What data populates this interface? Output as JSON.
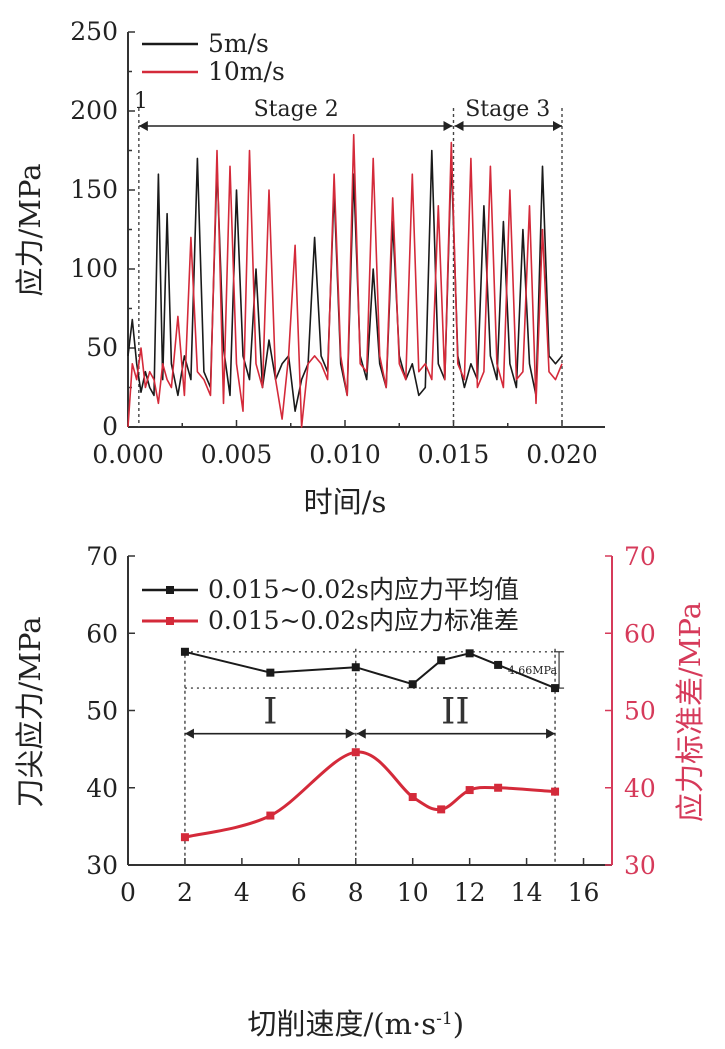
{
  "chart_data": [
    {
      "type": "line",
      "title": "",
      "xlabel": "时间/s",
      "ylabel": "应力/MPa",
      "xlim": [
        0.0,
        0.02
      ],
      "ylim": [
        0,
        250
      ],
      "xticks": [
        "0.000",
        "0.005",
        "0.010",
        "0.015",
        "0.020"
      ],
      "yticks": [
        "0",
        "50",
        "100",
        "150",
        "200",
        "250"
      ],
      "legend_position": "top-left",
      "stage_labels": [
        "1",
        "Stage 2",
        "Stage 3"
      ],
      "stage_boundaries": [
        0.0005,
        0.015,
        0.02
      ],
      "series": [
        {
          "name": "5m/s",
          "color": "#1a1a1a",
          "x": [
            0.0,
            0.0002,
            0.0004,
            0.0006,
            0.0008,
            0.001,
            0.0012,
            0.0014,
            0.0016,
            0.0018,
            0.002,
            0.0023,
            0.0026,
            0.0029,
            0.0032,
            0.0035,
            0.0038,
            0.0041,
            0.0044,
            0.0047,
            0.005,
            0.0053,
            0.0056,
            0.0059,
            0.0062,
            0.0065,
            0.0068,
            0.0071,
            0.0074,
            0.0077,
            0.008,
            0.0083,
            0.0086,
            0.0089,
            0.0092,
            0.0095,
            0.0098,
            0.0101,
            0.0104,
            0.0107,
            0.011,
            0.0113,
            0.0116,
            0.0119,
            0.0122,
            0.0125,
            0.0128,
            0.0131,
            0.0134,
            0.0137,
            0.014,
            0.0143,
            0.0146,
            0.0149,
            0.0152,
            0.0155,
            0.0158,
            0.0161,
            0.0164,
            0.0167,
            0.017,
            0.0173,
            0.0176,
            0.0179,
            0.0182,
            0.0185,
            0.0188,
            0.0191,
            0.0194,
            0.0197,
            0.02
          ],
          "values": [
            45,
            68,
            40,
            22,
            35,
            25,
            20,
            160,
            30,
            135,
            40,
            20,
            45,
            30,
            170,
            35,
            25,
            165,
            50,
            20,
            150,
            45,
            30,
            100,
            25,
            55,
            30,
            40,
            45,
            10,
            30,
            40,
            120,
            45,
            35,
            150,
            40,
            20,
            160,
            45,
            30,
            100,
            40,
            25,
            130,
            45,
            30,
            40,
            20,
            25,
            175,
            40,
            30,
            170,
            45,
            25,
            40,
            30,
            140,
            45,
            30,
            130,
            40,
            25,
            125,
            40,
            20,
            165,
            45,
            40,
            45
          ]
        },
        {
          "name": "10m/s",
          "color": "#d42a3a",
          "x": [
            0.0,
            0.0002,
            0.0004,
            0.0006,
            0.0008,
            0.001,
            0.0012,
            0.0014,
            0.0016,
            0.0018,
            0.002,
            0.0023,
            0.0026,
            0.0029,
            0.0032,
            0.0035,
            0.0038,
            0.0041,
            0.0044,
            0.0047,
            0.005,
            0.0053,
            0.0056,
            0.0059,
            0.0062,
            0.0065,
            0.0068,
            0.0071,
            0.0074,
            0.0077,
            0.008,
            0.0083,
            0.0086,
            0.0089,
            0.0092,
            0.0095,
            0.0098,
            0.0101,
            0.0104,
            0.0107,
            0.011,
            0.0113,
            0.0116,
            0.0119,
            0.0122,
            0.0125,
            0.0128,
            0.0131,
            0.0134,
            0.0137,
            0.014,
            0.0143,
            0.0146,
            0.0149,
            0.0152,
            0.0155,
            0.0158,
            0.0161,
            0.0164,
            0.0167,
            0.017,
            0.0173,
            0.0176,
            0.0179,
            0.0182,
            0.0185,
            0.0188,
            0.0191,
            0.0194,
            0.0197,
            0.02
          ],
          "values": [
            0,
            40,
            30,
            50,
            25,
            35,
            30,
            15,
            40,
            30,
            25,
            70,
            20,
            120,
            35,
            30,
            20,
            175,
            15,
            165,
            40,
            10,
            175,
            40,
            25,
            150,
            30,
            5,
            45,
            115,
            0,
            40,
            45,
            40,
            30,
            160,
            45,
            20,
            185,
            40,
            35,
            170,
            45,
            25,
            145,
            40,
            30,
            160,
            35,
            40,
            30,
            140,
            30,
            180,
            40,
            30,
            170,
            25,
            35,
            165,
            40,
            25,
            150,
            30,
            35,
            140,
            15,
            125,
            35,
            30,
            40
          ]
        }
      ]
    },
    {
      "type": "line",
      "title": "",
      "xlabel": "切削速度/(m·s",
      "xlabel_sup": "-1",
      "xlabel_close": ")",
      "ylabel": "刀尖应力/MPa",
      "ylabel_right": "应力标准差/MPa",
      "xlim": [
        0,
        17
      ],
      "ylim": [
        30,
        70
      ],
      "ylim_right": [
        30,
        70
      ],
      "xticks": [
        "0",
        "2",
        "4",
        "6",
        "8",
        "10",
        "12",
        "14",
        "16"
      ],
      "yticks": [
        "30",
        "40",
        "50",
        "60",
        "70"
      ],
      "yticks_right": [
        "30",
        "40",
        "50",
        "60",
        "70"
      ],
      "legend_position": "top-left",
      "regions": [
        "I",
        "II"
      ],
      "region_boundaries": [
        2,
        8,
        15
      ],
      "range_annotation": "4.66MPa",
      "series": [
        {
          "name": "0.015~0.02s内应力平均值",
          "color": "#1a1a1a",
          "x": [
            2,
            5,
            8,
            10,
            11,
            12,
            13,
            15
          ],
          "values": [
            57.6,
            54.9,
            55.6,
            53.4,
            56.5,
            57.4,
            55.9,
            52.9
          ]
        },
        {
          "name": "0.015~0.02s内应力标准差",
          "color": "#d42a3a",
          "axis": "right",
          "x": [
            2,
            5,
            8,
            10,
            11,
            12,
            13,
            15
          ],
          "values": [
            33.6,
            36.4,
            44.6,
            38.8,
            37.2,
            39.7,
            40.0,
            39.5
          ]
        }
      ]
    }
  ]
}
